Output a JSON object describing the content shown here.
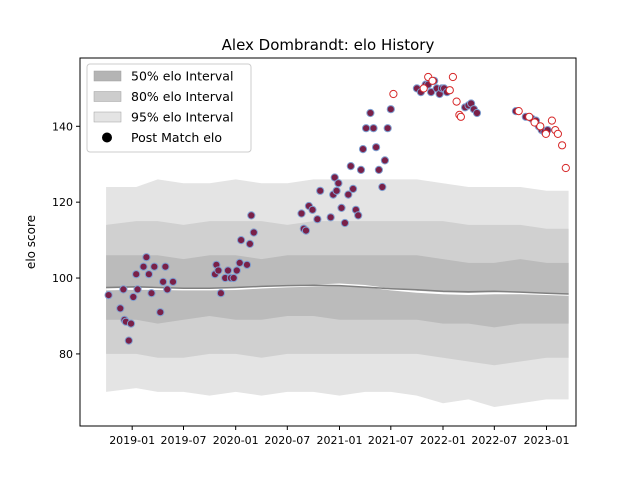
{
  "chart_data": {
    "type": "scatter",
    "title": "Alex Dombrandt: elo History",
    "xlabel": "",
    "ylabel": "elo score",
    "xlim": [
      "2018-07-01",
      "2023-04-15"
    ],
    "ylim": [
      61,
      158
    ],
    "x_ticks": [
      "2019-01",
      "2019-07",
      "2020-01",
      "2020-07",
      "2021-01",
      "2021-07",
      "2022-01",
      "2022-07",
      "2023-01"
    ],
    "y_ticks": [
      80,
      100,
      120,
      140
    ],
    "legend": {
      "position": "top-left",
      "entries": [
        {
          "label": "50% elo Interval",
          "color": "#b4b4b4"
        },
        {
          "label": "80% elo Interval",
          "color": "#cdcdcd"
        },
        {
          "label": "95% elo Interval",
          "color": "#e4e4e4"
        },
        {
          "label": "Post Match elo",
          "color": "#000000"
        }
      ]
    },
    "colors": {
      "band95": "#e4e4e4",
      "band80": "#d0d0d0",
      "band50": "#bbbbbb",
      "median_line": "#808080",
      "mean_line": "#ffffff",
      "point_fill_main": "#7a2048",
      "point_edge_main": "#7f9fd0",
      "point_fill_open": "#ffffff",
      "point_edge_open": "#d62728"
    },
    "bands": {
      "dates": [
        "2018-10-01",
        "2019-01-15",
        "2019-04-01",
        "2019-07-01",
        "2019-10-01",
        "2020-01-01",
        "2020-04-01",
        "2020-07-01",
        "2020-10-01",
        "2021-01-01",
        "2021-04-01",
        "2021-07-01",
        "2021-10-01",
        "2022-01-01",
        "2022-04-01",
        "2022-07-01",
        "2022-10-01",
        "2023-01-01",
        "2023-03-20"
      ],
      "p95_low": [
        70,
        71,
        70,
        70,
        69,
        70,
        69,
        70,
        70,
        69,
        70,
        70,
        69,
        67,
        68,
        66,
        67,
        68,
        68
      ],
      "p80_low": [
        80,
        80,
        79,
        79,
        80,
        80,
        79,
        80,
        80,
        80,
        80,
        80,
        80,
        79,
        78,
        77,
        78,
        79,
        79
      ],
      "p50_low": [
        89,
        89,
        88,
        89,
        90,
        89,
        89,
        90,
        90,
        89,
        89,
        89,
        89,
        88,
        88,
        87,
        88,
        88,
        88
      ],
      "p50_high": [
        106,
        106,
        106,
        105,
        106,
        106,
        105,
        106,
        106,
        106,
        106,
        106,
        106,
        105,
        104,
        104,
        105,
        104,
        104
      ],
      "p80_high": [
        114,
        115,
        115,
        114,
        115,
        115,
        115,
        114,
        115,
        115,
        115,
        115,
        115,
        115,
        114,
        114,
        114,
        113,
        113
      ],
      "p95_high": [
        124,
        124,
        126,
        125,
        125,
        126,
        125,
        125,
        126,
        126,
        126,
        126,
        126,
        125,
        124,
        124,
        124,
        123,
        123
      ],
      "median": [
        97.5,
        97.7,
        97.5,
        97.3,
        97.3,
        97.5,
        97.8,
        98.0,
        98.1,
        98.0,
        97.6,
        97.2,
        96.9,
        96.5,
        96.4,
        96.5,
        96.3,
        96.0,
        95.8
      ],
      "mean": [
        97.0,
        97.2,
        97.1,
        97.0,
        97.0,
        97.1,
        97.5,
        97.8,
        98.0,
        98.3,
        97.9,
        97.0,
        96.4,
        96.0,
        95.8,
        96.0,
        96.0,
        95.8,
        95.6
      ]
    },
    "series": [
      {
        "name": "Post Match elo",
        "style": "filled",
        "points": [
          [
            "2018-10-10",
            95.5
          ],
          [
            "2018-11-20",
            92.0
          ],
          [
            "2018-12-01",
            97.0
          ],
          [
            "2018-12-05",
            89.0
          ],
          [
            "2018-12-10",
            88.5
          ],
          [
            "2018-12-20",
            83.5
          ],
          [
            "2018-12-28",
            88.0
          ],
          [
            "2019-01-05",
            95.0
          ],
          [
            "2019-01-15",
            101.0
          ],
          [
            "2019-01-20",
            97.0
          ],
          [
            "2019-02-10",
            103.0
          ],
          [
            "2019-02-20",
            105.5
          ],
          [
            "2019-03-01",
            101.0
          ],
          [
            "2019-03-10",
            96.0
          ],
          [
            "2019-03-20",
            103.0
          ],
          [
            "2019-04-10",
            91.0
          ],
          [
            "2019-04-20",
            99.0
          ],
          [
            "2019-04-28",
            103.0
          ],
          [
            "2019-05-05",
            97.0
          ],
          [
            "2019-05-25",
            99.0
          ],
          [
            "2019-10-20",
            101.0
          ],
          [
            "2019-10-25",
            103.5
          ],
          [
            "2019-11-01",
            102.0
          ],
          [
            "2019-11-10",
            96.0
          ],
          [
            "2019-11-25",
            100.0
          ],
          [
            "2019-12-05",
            102.0
          ],
          [
            "2019-12-15",
            100.0
          ],
          [
            "2019-12-25",
            100.0
          ],
          [
            "2020-01-05",
            102.0
          ],
          [
            "2020-01-15",
            104.0
          ],
          [
            "2020-01-20",
            110.0
          ],
          [
            "2020-02-10",
            103.5
          ],
          [
            "2020-02-20",
            109.0
          ],
          [
            "2020-02-25",
            116.5
          ],
          [
            "2020-03-05",
            112.0
          ],
          [
            "2020-08-20",
            117.0
          ],
          [
            "2020-08-28",
            113.0
          ],
          [
            "2020-09-05",
            112.5
          ],
          [
            "2020-09-15",
            119.0
          ],
          [
            "2020-09-28",
            118.0
          ],
          [
            "2020-10-15",
            115.5
          ],
          [
            "2020-10-25",
            123.0
          ],
          [
            "2020-12-01",
            116.0
          ],
          [
            "2020-12-10",
            122.0
          ],
          [
            "2020-12-15",
            126.5
          ],
          [
            "2020-12-22",
            123.0
          ],
          [
            "2020-12-28",
            125.0
          ],
          [
            "2021-01-08",
            118.5
          ],
          [
            "2021-01-20",
            114.5
          ],
          [
            "2021-02-01",
            122.0
          ],
          [
            "2021-02-10",
            129.5
          ],
          [
            "2021-02-18",
            123.5
          ],
          [
            "2021-02-28",
            118.0
          ],
          [
            "2021-03-08",
            116.5
          ],
          [
            "2021-03-18",
            128.5
          ],
          [
            "2021-03-25",
            134.0
          ],
          [
            "2021-04-05",
            139.5
          ],
          [
            "2021-04-20",
            143.5
          ],
          [
            "2021-05-01",
            139.5
          ],
          [
            "2021-05-10",
            134.5
          ],
          [
            "2021-05-20",
            128.5
          ],
          [
            "2021-06-01",
            124.0
          ],
          [
            "2021-06-10",
            131.0
          ],
          [
            "2021-06-20",
            139.5
          ],
          [
            "2021-07-01",
            144.5
          ],
          [
            "2021-10-01",
            150.0
          ],
          [
            "2021-10-15",
            149.0
          ],
          [
            "2021-11-01",
            151.0
          ],
          [
            "2021-11-10",
            151.0
          ],
          [
            "2021-11-20",
            149.0
          ],
          [
            "2021-12-01",
            152.0
          ],
          [
            "2021-12-10",
            150.0
          ],
          [
            "2021-12-20",
            148.5
          ],
          [
            "2021-12-28",
            150.0
          ],
          [
            "2022-01-05",
            150.0
          ],
          [
            "2022-01-15",
            149.0
          ],
          [
            "2022-03-20",
            145.0
          ],
          [
            "2022-04-01",
            145.5
          ],
          [
            "2022-04-10",
            146.0
          ],
          [
            "2022-04-20",
            144.5
          ],
          [
            "2022-05-01",
            143.5
          ],
          [
            "2022-09-15",
            144.0
          ],
          [
            "2022-10-20",
            142.5
          ],
          [
            "2022-11-10",
            142.0
          ],
          [
            "2022-11-25",
            141.5
          ],
          [
            "2022-12-05",
            140.0
          ],
          [
            "2022-12-15",
            139.0
          ],
          [
            "2022-12-25",
            138.5
          ],
          [
            "2023-01-05",
            139.0
          ]
        ]
      },
      {
        "name": "Post Match elo",
        "style": "open",
        "points": [
          [
            "2021-07-10",
            148.5
          ],
          [
            "2021-10-25",
            150.0
          ],
          [
            "2021-11-10",
            153.0
          ],
          [
            "2021-11-25",
            152.0
          ],
          [
            "2022-01-25",
            149.5
          ],
          [
            "2022-02-05",
            153.0
          ],
          [
            "2022-02-18",
            146.5
          ],
          [
            "2022-02-28",
            143.0
          ],
          [
            "2022-03-05",
            142.5
          ],
          [
            "2022-09-25",
            144.0
          ],
          [
            "2022-11-01",
            142.5
          ],
          [
            "2022-11-20",
            141.0
          ],
          [
            "2022-12-10",
            140.0
          ],
          [
            "2022-12-30",
            138.0
          ],
          [
            "2023-01-20",
            141.5
          ],
          [
            "2023-02-01",
            139.0
          ],
          [
            "2023-02-10",
            138.0
          ],
          [
            "2023-02-25",
            135.0
          ],
          [
            "2023-03-10",
            129.0
          ]
        ]
      }
    ]
  }
}
